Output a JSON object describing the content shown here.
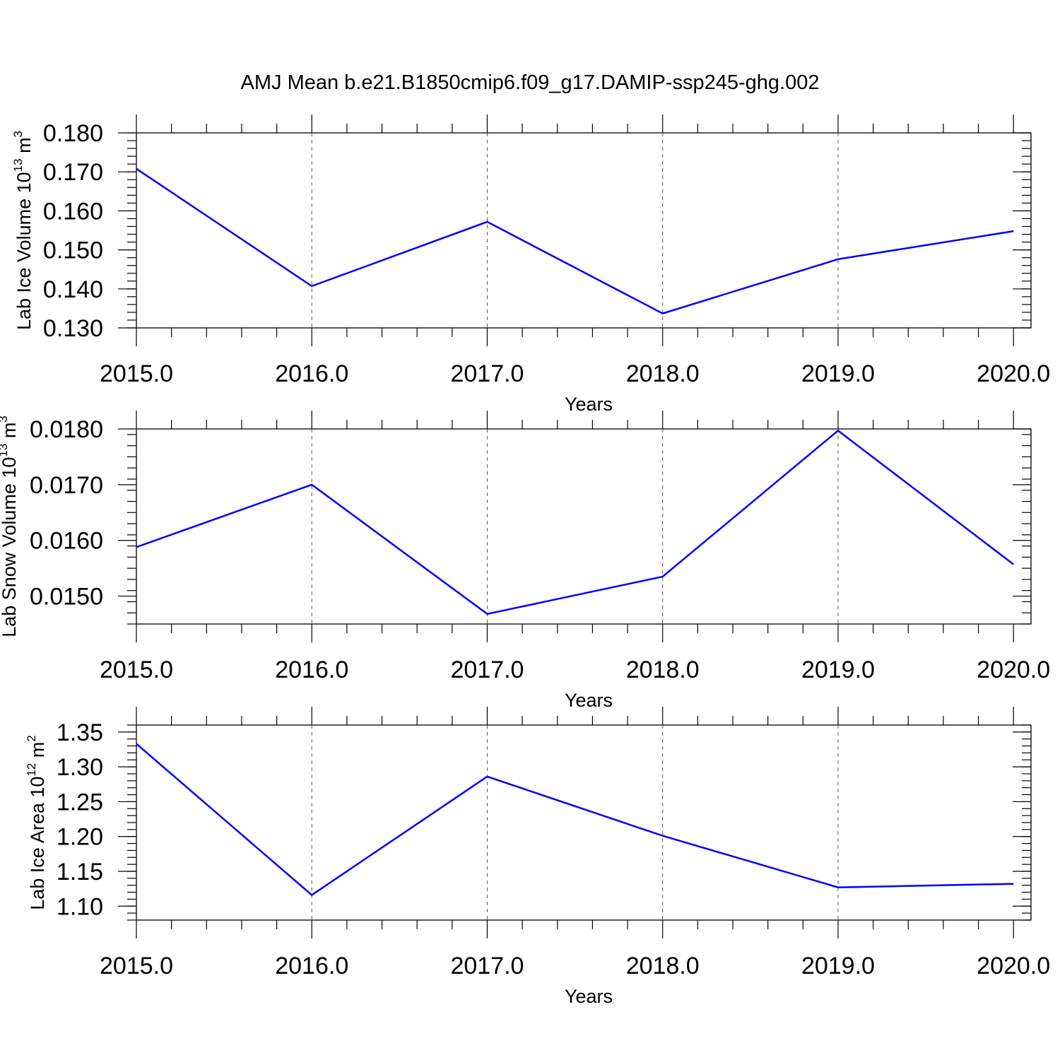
{
  "title": "AMJ Mean b.e21.B1850cmip6.f09_g17.DAMIP-ssp245-ghg.002",
  "colors": {
    "series": "#0000ff",
    "axes": "#000000",
    "grid": "#555555"
  },
  "chart_data": [
    {
      "type": "line",
      "xlabel": "Years",
      "ylabel": "Lab Ice Volume 10",
      "ylabel_exponent": "13",
      "ylabel_unit": " m",
      "ylabel_unit_exponent": "3",
      "x": [
        2015,
        2016,
        2017,
        2018,
        2019,
        2020
      ],
      "x_tick_labels": [
        "2015.0",
        "2016.0",
        "2017.0",
        "2018.0",
        "2019.0",
        "2020.0"
      ],
      "values": [
        0.1708,
        0.1407,
        0.1572,
        0.1337,
        0.1476,
        0.1548
      ],
      "y_ticks": [
        0.13,
        0.14,
        0.15,
        0.16,
        0.17,
        0.18
      ],
      "y_tick_labels": [
        "0.130",
        "0.140",
        "0.150",
        "0.160",
        "0.170",
        "0.180"
      ],
      "ylim": [
        0.13,
        0.18
      ],
      "y_minor_step": 0.002,
      "xlim": [
        2015,
        2020.1
      ],
      "grid": "vertical dashed at x ticks"
    },
    {
      "type": "line",
      "xlabel": "Years",
      "ylabel": "Lab Snow Volume 10",
      "ylabel_exponent": "13",
      "ylabel_unit": " m",
      "ylabel_unit_exponent": "3",
      "x": [
        2015,
        2016,
        2017,
        2018,
        2019,
        2020
      ],
      "x_tick_labels": [
        "2015.0",
        "2016.0",
        "2017.0",
        "2018.0",
        "2019.0",
        "2020.0"
      ],
      "values": [
        0.01588,
        0.017,
        0.01468,
        0.01535,
        0.01797,
        0.01557
      ],
      "y_ticks": [
        0.015,
        0.016,
        0.017,
        0.018
      ],
      "y_tick_labels": [
        "0.0150",
        "0.0160",
        "0.0170",
        "0.0180"
      ],
      "ylim": [
        0.0145,
        0.018
      ],
      "y_minor_step": 0.0002,
      "xlim": [
        2015,
        2020.1
      ],
      "grid": "vertical dashed at x ticks"
    },
    {
      "type": "line",
      "xlabel": "Years",
      "ylabel": "Lab Ice Area 10",
      "ylabel_exponent": "12",
      "ylabel_unit": " m",
      "ylabel_unit_exponent": "2",
      "x": [
        2015,
        2016,
        2017,
        2018,
        2019,
        2020
      ],
      "x_tick_labels": [
        "2015.0",
        "2016.0",
        "2017.0",
        "2018.0",
        "2019.0",
        "2020.0"
      ],
      "values": [
        1.333,
        1.116,
        1.286,
        1.201,
        1.127,
        1.132
      ],
      "y_ticks": [
        1.1,
        1.15,
        1.2,
        1.25,
        1.3,
        1.35
      ],
      "y_tick_labels": [
        "1.10",
        "1.15",
        "1.20",
        "1.25",
        "1.30",
        "1.35"
      ],
      "ylim": [
        1.08,
        1.36
      ],
      "y_minor_step": 0.01,
      "xlim": [
        2015,
        2020.1
      ],
      "grid": "vertical dashed at x ticks"
    }
  ]
}
